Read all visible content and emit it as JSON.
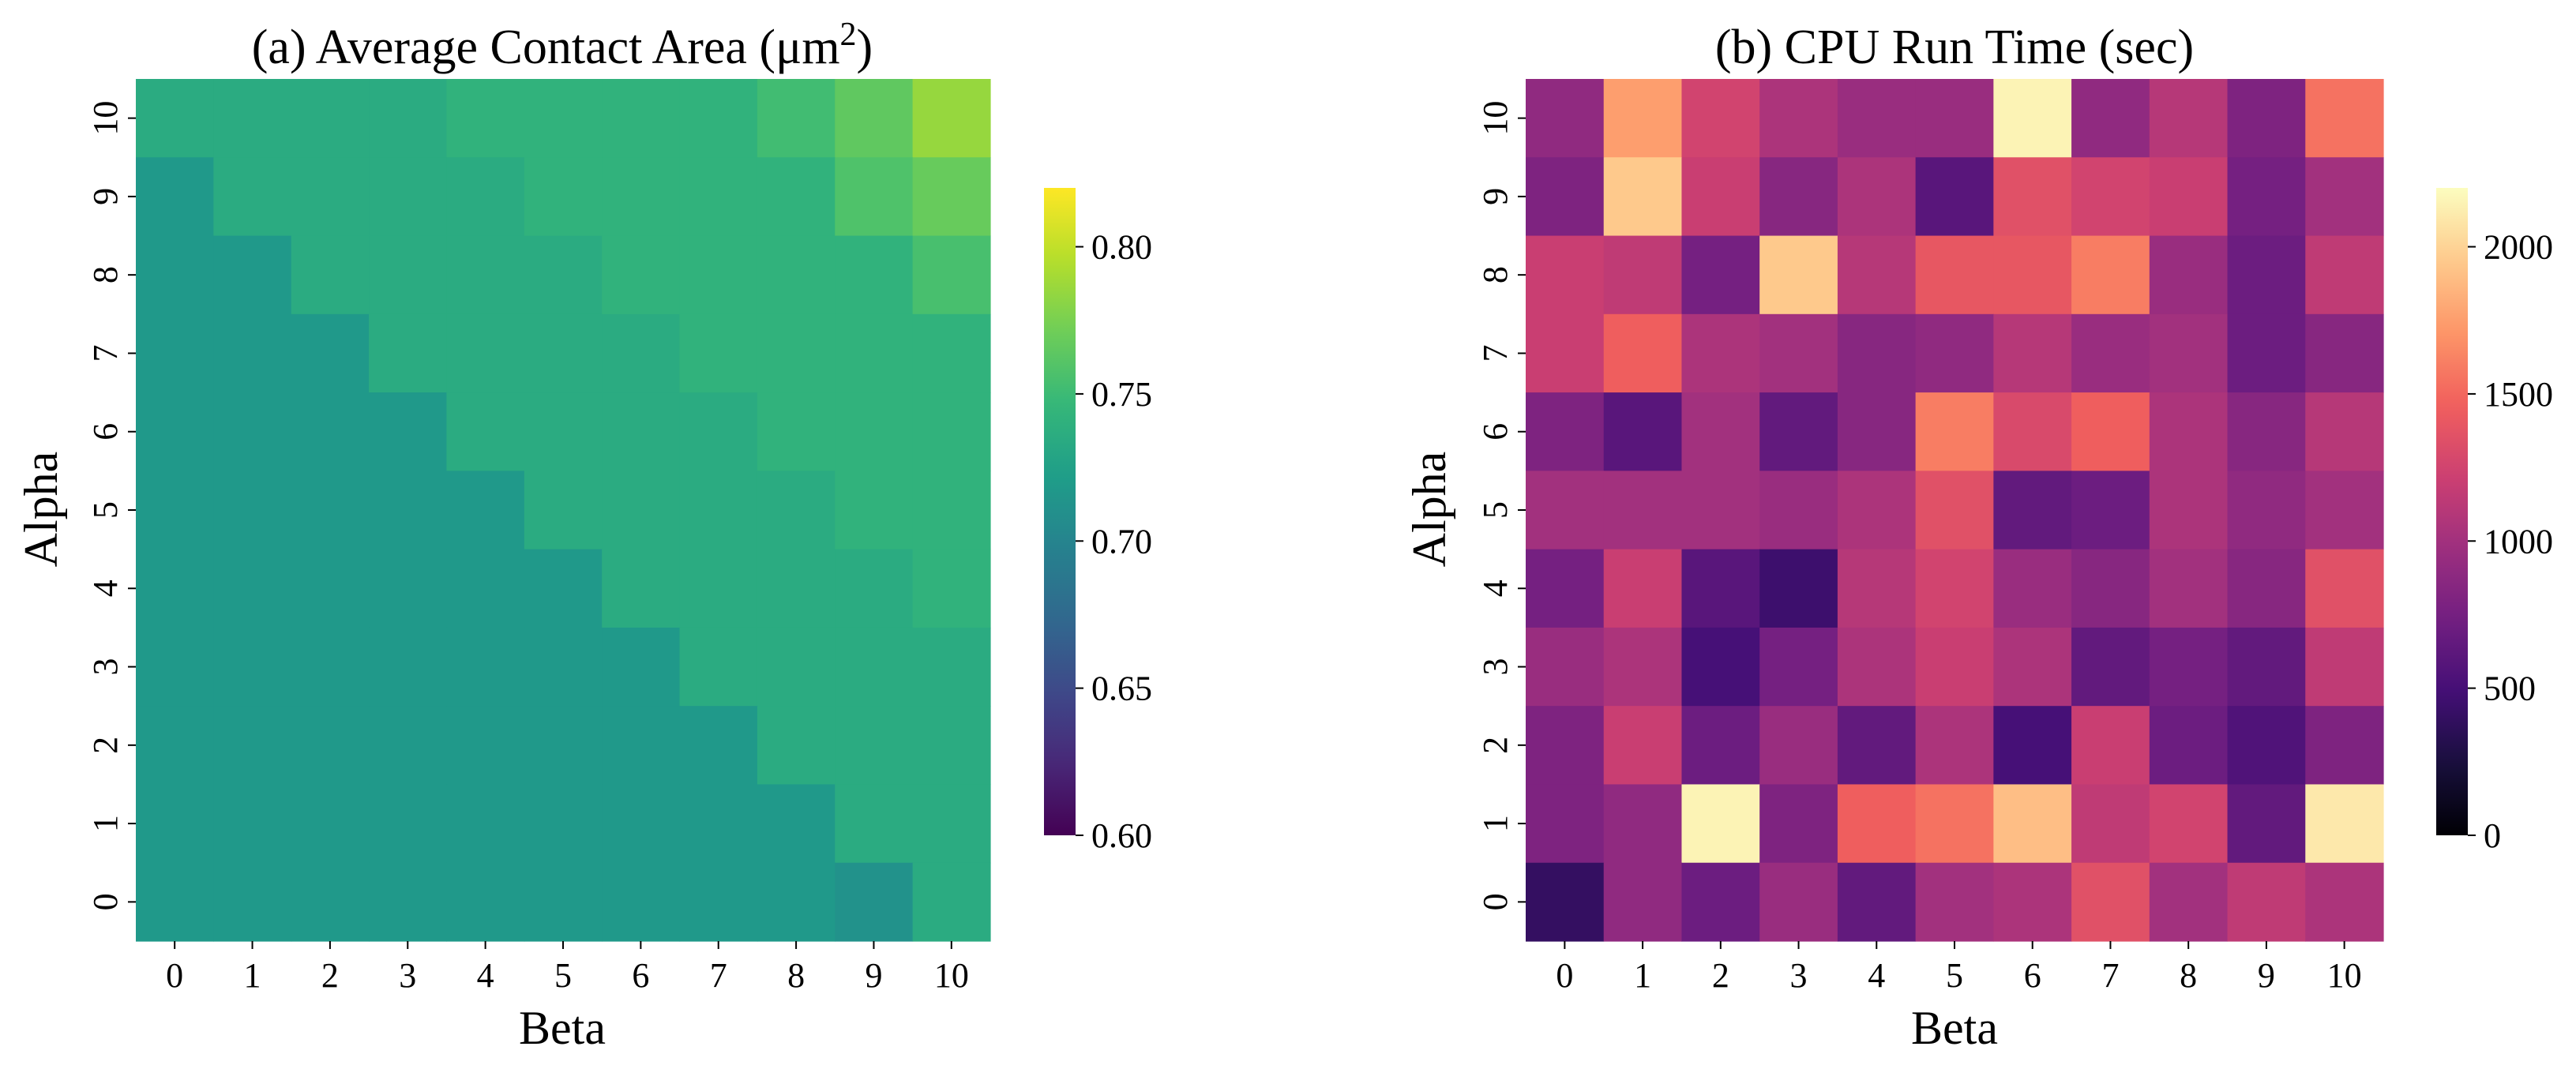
{
  "chart_data": [
    {
      "type": "heatmap",
      "title": "(a) Average Contact Area (μm",
      "title_superscript": "2",
      "title_close": ")",
      "xlabel": "Beta",
      "ylabel": "Alpha",
      "colormap": "viridis",
      "vmin": 0.6,
      "vmax": 0.82,
      "x_categories": [
        "0",
        "1",
        "2",
        "3",
        "4",
        "5",
        "6",
        "7",
        "8",
        "9",
        "10"
      ],
      "y_categories": [
        "10",
        "9",
        "8",
        "7",
        "6",
        "5",
        "4",
        "3",
        "2",
        "1",
        "0"
      ],
      "values": [
        [
          0.735,
          0.735,
          0.735,
          0.735,
          0.742,
          0.742,
          0.742,
          0.742,
          0.752,
          0.765,
          0.785
        ],
        [
          0.718,
          0.735,
          0.735,
          0.735,
          0.735,
          0.742,
          0.742,
          0.742,
          0.742,
          0.758,
          0.768
        ],
        [
          0.718,
          0.718,
          0.735,
          0.735,
          0.735,
          0.735,
          0.742,
          0.742,
          0.742,
          0.742,
          0.755
        ],
        [
          0.718,
          0.718,
          0.718,
          0.735,
          0.735,
          0.735,
          0.735,
          0.742,
          0.742,
          0.742,
          0.742
        ],
        [
          0.718,
          0.718,
          0.718,
          0.718,
          0.735,
          0.735,
          0.735,
          0.735,
          0.742,
          0.742,
          0.742
        ],
        [
          0.718,
          0.718,
          0.718,
          0.718,
          0.718,
          0.735,
          0.735,
          0.735,
          0.735,
          0.742,
          0.742
        ],
        [
          0.718,
          0.718,
          0.718,
          0.718,
          0.718,
          0.718,
          0.735,
          0.735,
          0.735,
          0.735,
          0.742
        ],
        [
          0.718,
          0.718,
          0.718,
          0.718,
          0.718,
          0.718,
          0.718,
          0.735,
          0.735,
          0.735,
          0.735
        ],
        [
          0.718,
          0.718,
          0.718,
          0.718,
          0.718,
          0.718,
          0.718,
          0.718,
          0.735,
          0.735,
          0.735
        ],
        [
          0.718,
          0.718,
          0.718,
          0.718,
          0.718,
          0.718,
          0.718,
          0.718,
          0.718,
          0.735,
          0.735
        ],
        [
          0.718,
          0.718,
          0.718,
          0.718,
          0.718,
          0.718,
          0.718,
          0.718,
          0.718,
          0.712,
          0.735
        ]
      ],
      "colorbar_ticks": [
        {
          "value": 0.6,
          "label": "0.60"
        },
        {
          "value": 0.65,
          "label": "0.65"
        },
        {
          "value": 0.7,
          "label": "0.70"
        },
        {
          "value": 0.75,
          "label": "0.75"
        },
        {
          "value": 0.8,
          "label": "0.80"
        }
      ]
    },
    {
      "type": "heatmap",
      "title": "(b) CPU Run Time (sec)",
      "xlabel": "Beta",
      "ylabel": "Alpha",
      "colormap": "magma",
      "vmin": 0,
      "vmax": 2200,
      "x_categories": [
        "0",
        "1",
        "2",
        "3",
        "4",
        "5",
        "6",
        "7",
        "8",
        "9",
        "10"
      ],
      "y_categories": [
        "10",
        "9",
        "8",
        "7",
        "6",
        "5",
        "4",
        "3",
        "2",
        "1",
        "0"
      ],
      "values": [
        [
          900,
          1750,
          1250,
          1050,
          950,
          950,
          2150,
          900,
          1100,
          800,
          1550
        ],
        [
          800,
          1950,
          1200,
          850,
          1050,
          600,
          1350,
          1250,
          1200,
          750,
          1000
        ],
        [
          1200,
          1150,
          750,
          1950,
          1100,
          1400,
          1400,
          1600,
          950,
          700,
          1150
        ],
        [
          1200,
          1450,
          1050,
          1000,
          850,
          900,
          1100,
          950,
          1000,
          700,
          850
        ],
        [
          800,
          600,
          1000,
          650,
          850,
          1600,
          1300,
          1450,
          1050,
          850,
          1100
        ],
        [
          1000,
          1000,
          1000,
          950,
          1050,
          1350,
          650,
          700,
          1050,
          900,
          1000
        ],
        [
          750,
          1200,
          600,
          450,
          1100,
          1250,
          950,
          850,
          1000,
          850,
          1350
        ],
        [
          950,
          1050,
          500,
          750,
          1050,
          1200,
          1050,
          650,
          750,
          650,
          1150
        ],
        [
          800,
          1200,
          700,
          950,
          650,
          1050,
          500,
          1200,
          700,
          550,
          800
        ],
        [
          800,
          900,
          2150,
          800,
          1450,
          1550,
          1900,
          1150,
          1250,
          650,
          2100
        ],
        [
          400,
          900,
          700,
          950,
          650,
          1000,
          1050,
          1350,
          1000,
          1150,
          1050
        ]
      ],
      "colorbar_ticks": [
        {
          "value": 0,
          "label": "0"
        },
        {
          "value": 500,
          "label": "500"
        },
        {
          "value": 1000,
          "label": "1000"
        },
        {
          "value": 1500,
          "label": "1500"
        },
        {
          "value": 2000,
          "label": "2000"
        }
      ]
    }
  ]
}
